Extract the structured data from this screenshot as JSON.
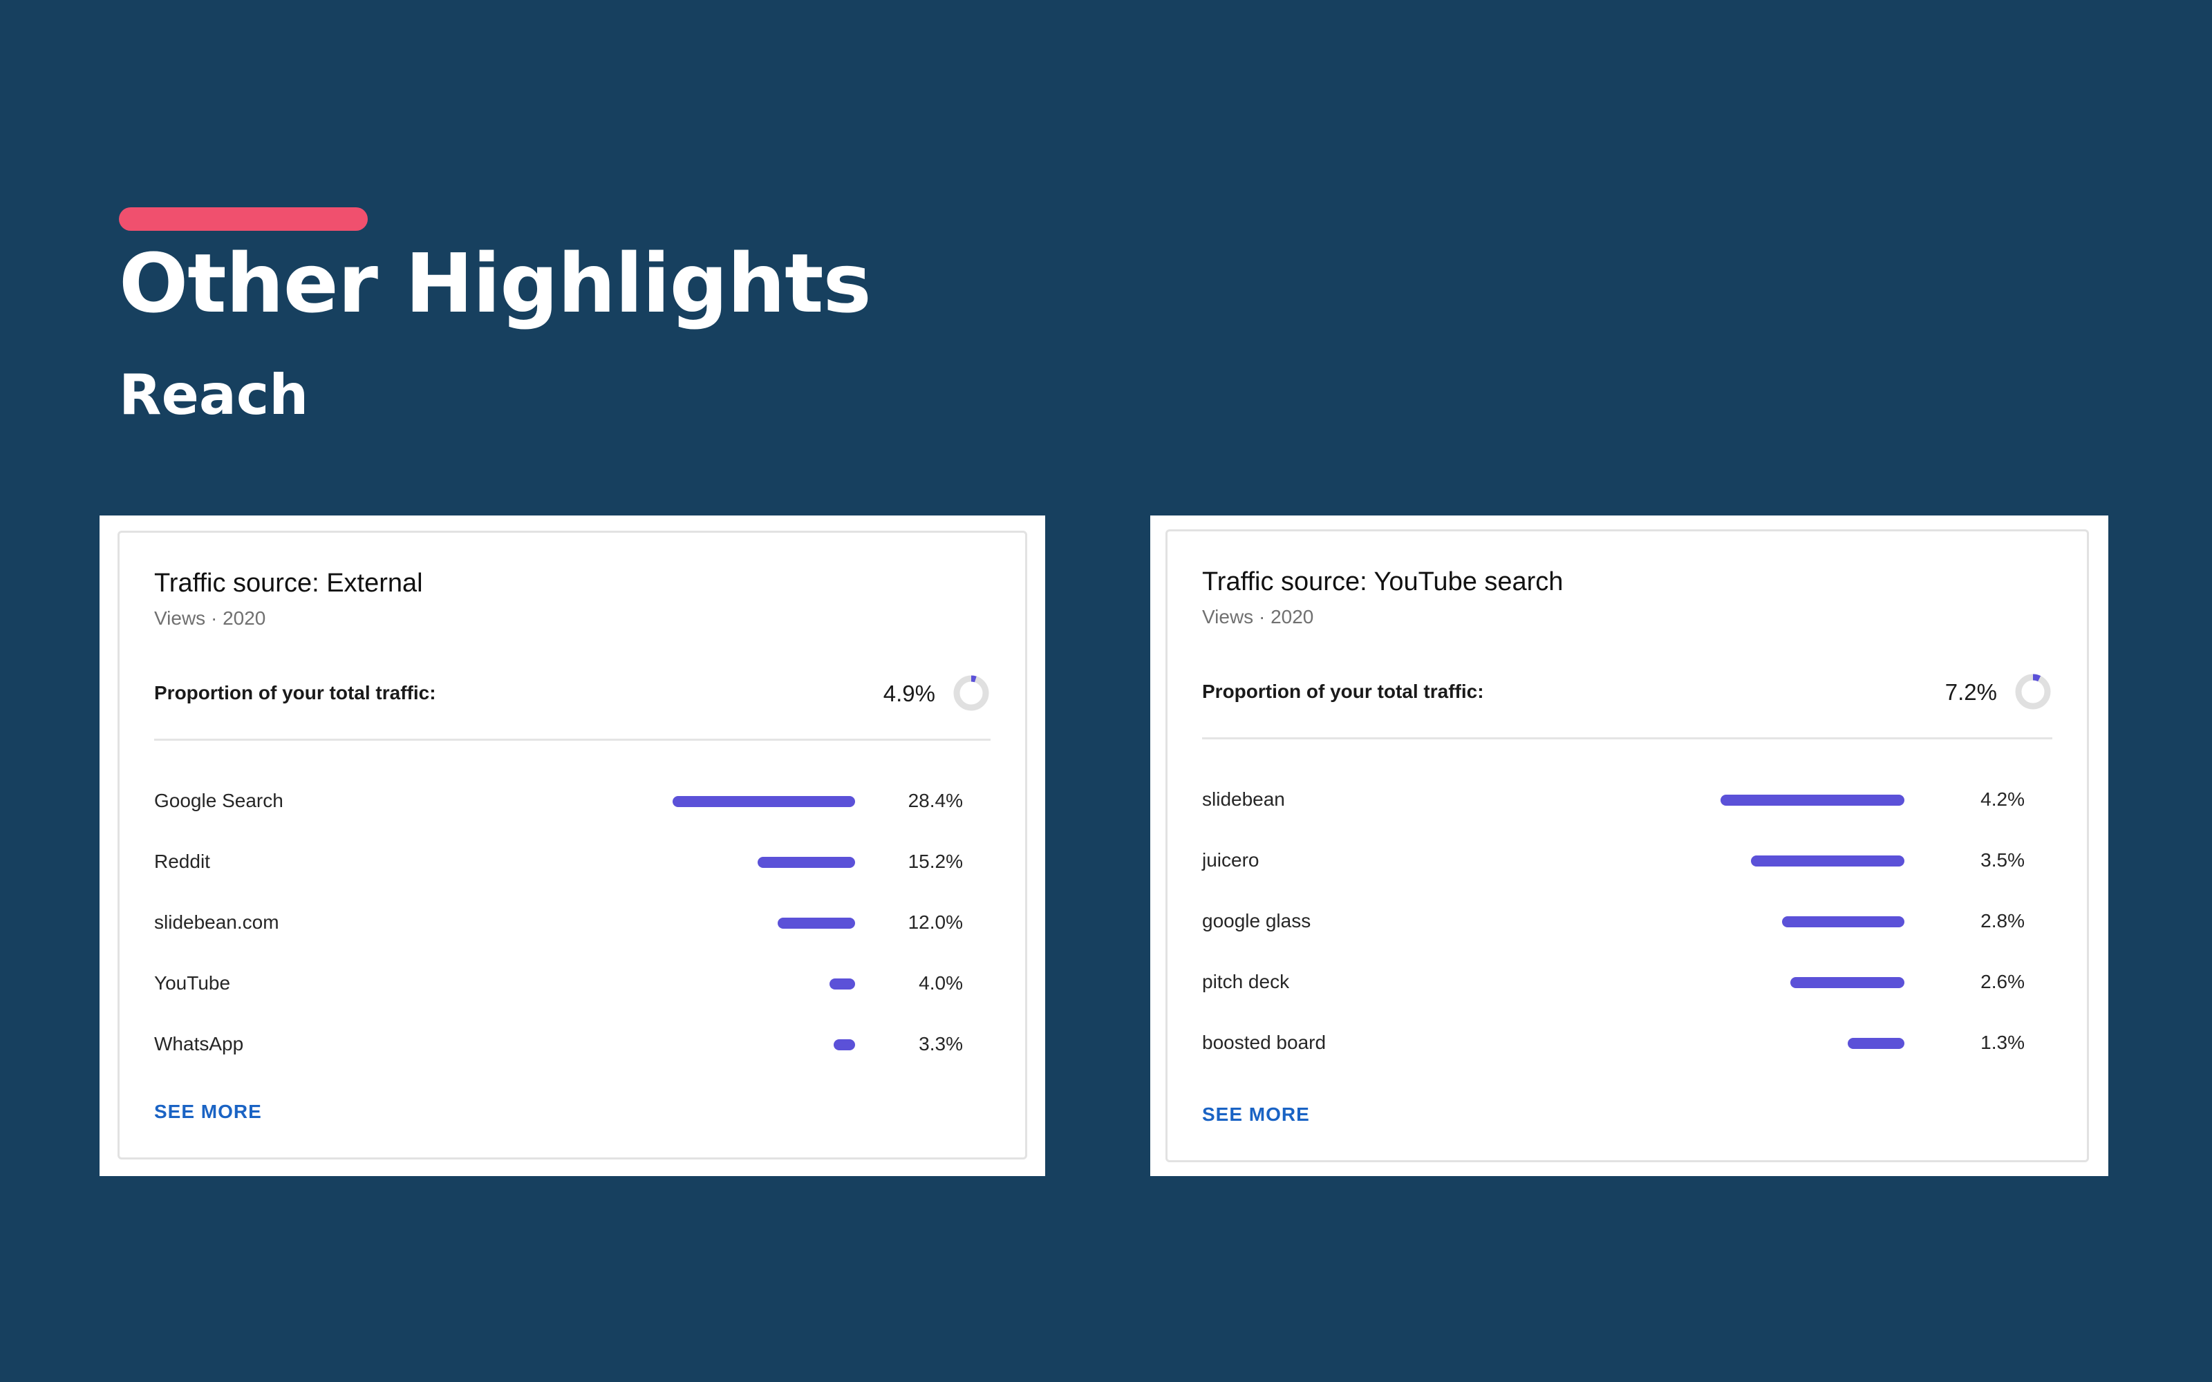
{
  "slide": {
    "title": "Other Highlights",
    "section": "Reach"
  },
  "colors": {
    "background": "#17405f",
    "accent": "#f0506e",
    "bar": "#5b51d8",
    "link": "#1a63c4",
    "donut_track": "#e0e0e0"
  },
  "cards": [
    {
      "title": "Traffic source: External",
      "subtitle": "Views · 2020",
      "proportion_label": "Proportion of your total traffic:",
      "proportion_value": "4.9%",
      "proportion_fraction": 0.049,
      "see_more": "SEE MORE",
      "rows": [
        {
          "label": "Google Search",
          "value": "28.4%",
          "fraction": 1.0
        },
        {
          "label": "Reddit",
          "value": "15.2%",
          "fraction": 0.535
        },
        {
          "label": "slidebean.com",
          "value": "12.0%",
          "fraction": 0.423
        },
        {
          "label": "YouTube",
          "value": "4.0%",
          "fraction": 0.141
        },
        {
          "label": "WhatsApp",
          "value": "3.3%",
          "fraction": 0.116
        }
      ]
    },
    {
      "title": "Traffic source: YouTube search",
      "subtitle": "Views · 2020",
      "proportion_label": "Proportion of your total traffic:",
      "proportion_value": "7.2%",
      "proportion_fraction": 0.072,
      "see_more": "SEE MORE",
      "rows": [
        {
          "label": "slidebean",
          "value": "4.2%",
          "fraction": 1.0
        },
        {
          "label": "juicero",
          "value": "3.5%",
          "fraction": 0.833
        },
        {
          "label": "google glass",
          "value": "2.8%",
          "fraction": 0.667
        },
        {
          "label": "pitch deck",
          "value": "2.6%",
          "fraction": 0.619
        },
        {
          "label": "boosted board",
          "value": "1.3%",
          "fraction": 0.31
        }
      ]
    }
  ]
}
